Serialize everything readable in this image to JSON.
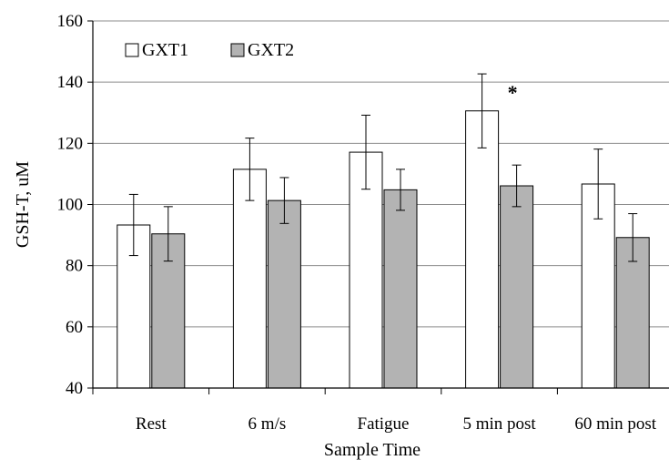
{
  "chart_data": {
    "type": "bar",
    "xlabel": "Sample Time",
    "ylabel": "GSH-T, uM",
    "ylim": [
      40,
      160
    ],
    "yticks": [
      40,
      60,
      80,
      100,
      120,
      140,
      160
    ],
    "grid": "horizontal",
    "legend_position": "top-left",
    "categories": [
      "Rest",
      "6 m/s",
      "Fatigue",
      "5 min post",
      "60 min post"
    ],
    "series": [
      {
        "name": "GXT1",
        "color": "#ffffff",
        "values": [
          93.3,
          111.5,
          117.1,
          130.6,
          106.7
        ],
        "error": [
          10.0,
          10.2,
          12.1,
          12.1,
          11.4
        ]
      },
      {
        "name": "GXT2",
        "color": "#b3b3b3",
        "values": [
          90.4,
          101.3,
          104.8,
          106.1,
          89.2
        ],
        "error": [
          8.9,
          7.5,
          6.7,
          6.8,
          7.8
        ]
      }
    ],
    "annotations": [
      {
        "text": "*",
        "category": "5 min post",
        "series": "GXT1"
      }
    ]
  }
}
